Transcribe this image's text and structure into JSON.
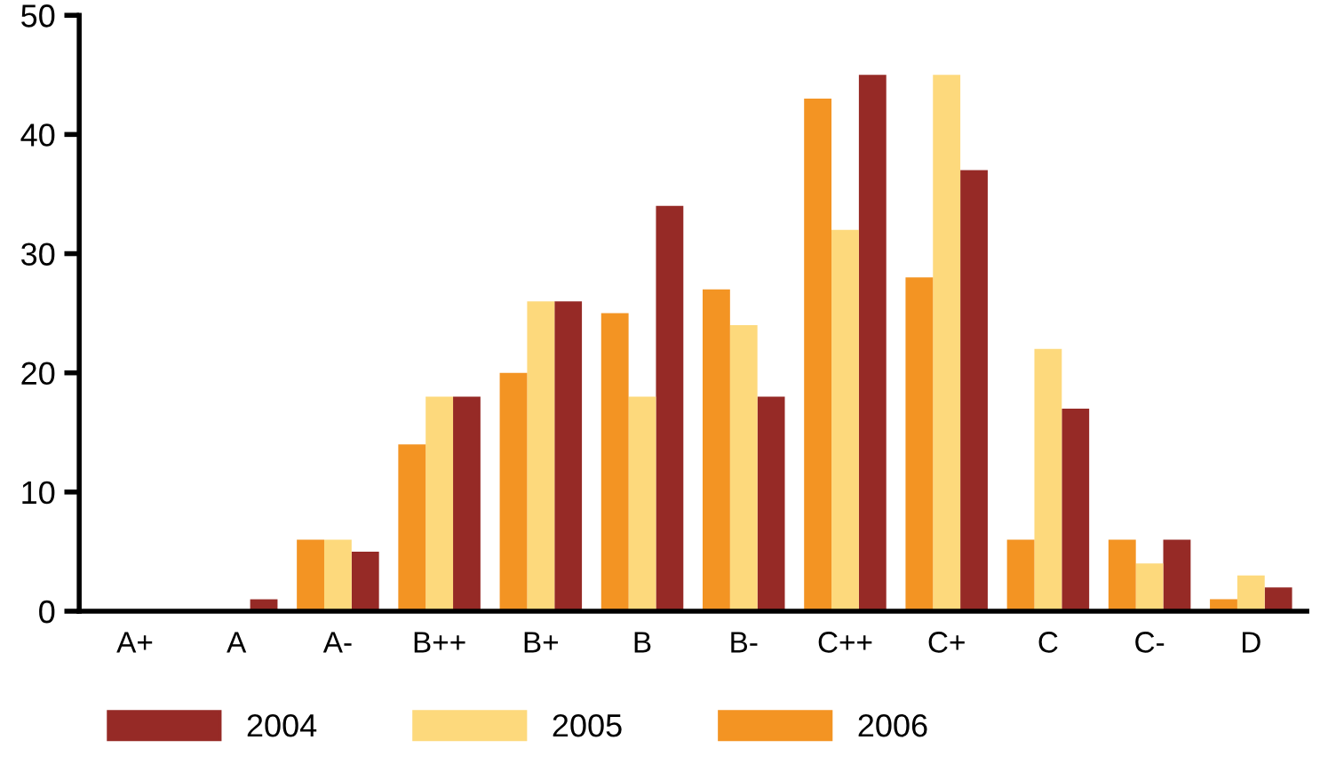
{
  "chart_data": {
    "type": "bar",
    "categories": [
      "A+",
      "A",
      "A-",
      "B++",
      "B+",
      "B",
      "B-",
      "C++",
      "C+",
      "C",
      "C-",
      "D"
    ],
    "series": [
      {
        "name": "2004",
        "color": "#962a26",
        "values": [
          0,
          1,
          5,
          18,
          26,
          34,
          18,
          45,
          37,
          17,
          6,
          2
        ]
      },
      {
        "name": "2005",
        "color": "#fdd97c",
        "values": [
          0,
          0,
          6,
          18,
          26,
          18,
          24,
          32,
          45,
          22,
          4,
          3
        ]
      },
      {
        "name": "2006",
        "color": "#f39423",
        "values": [
          0,
          0,
          6,
          14,
          20,
          25,
          27,
          43,
          28,
          6,
          6,
          1
        ]
      }
    ],
    "ylim": [
      0,
      50
    ],
    "yticks": [
      0,
      10,
      20,
      30,
      40,
      50
    ],
    "grid": false,
    "legend": "bottom"
  }
}
